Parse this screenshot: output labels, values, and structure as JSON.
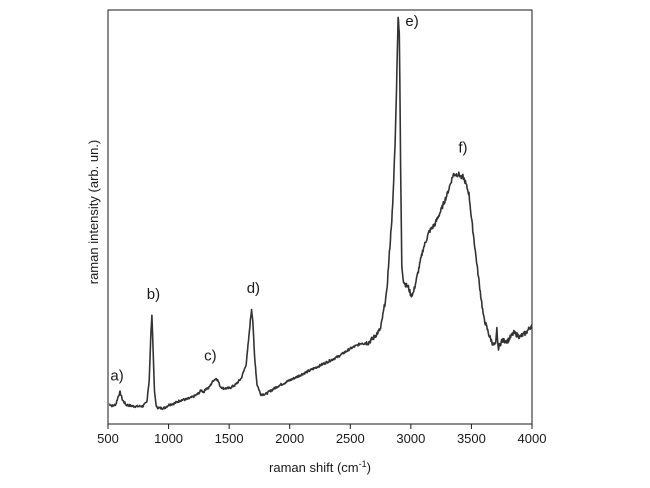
{
  "chart_data": {
    "type": "line",
    "xlabel": "raman shift (cm",
    "xlabel_sup": "-1",
    "xlabel_end": ")",
    "ylabel": "raman intensity (arb. un.)",
    "xlim": [
      500,
      4000
    ],
    "ylim": [
      0,
      1
    ],
    "x_ticks": [
      500,
      1000,
      1500,
      2000,
      2500,
      3000,
      3500,
      4000
    ],
    "y_ticks_shown": false,
    "grid": false,
    "line_color": "#333333",
    "series": [
      {
        "x": [
          510,
          540,
          565,
          585,
          600,
          620,
          650,
          700,
          750,
          790,
          820,
          840,
          852,
          862,
          872,
          884,
          900,
          930,
          960,
          975,
          1000,
          1050,
          1100,
          1150,
          1200,
          1240,
          1270,
          1290,
          1310,
          1330,
          1350,
          1370,
          1395,
          1410,
          1425,
          1450,
          1500,
          1550,
          1600,
          1640,
          1660,
          1675,
          1685,
          1695,
          1710,
          1730,
          1760,
          1800,
          1900,
          2000,
          2100,
          2200,
          2300,
          2400,
          2500,
          2600,
          2650,
          2700,
          2750,
          2800,
          2850,
          2870,
          2885,
          2895,
          2905,
          2915,
          2925,
          2940,
          2960,
          2980,
          3000,
          3020,
          3050,
          3100,
          3150,
          3200,
          3250,
          3300,
          3350,
          3380,
          3400,
          3420,
          3430,
          3450,
          3480,
          3500,
          3550,
          3600,
          3650,
          3680,
          3700,
          3710,
          3720,
          3750,
          3800,
          3850,
          3900,
          3950,
          4000
        ],
        "y": [
          0.02,
          0.015,
          0.02,
          0.04,
          0.05,
          0.03,
          0.018,
          0.015,
          0.014,
          0.015,
          0.025,
          0.08,
          0.18,
          0.245,
          0.16,
          0.05,
          0.012,
          0.01,
          0.01,
          0.012,
          0.018,
          0.022,
          0.03,
          0.032,
          0.038,
          0.045,
          0.055,
          0.05,
          0.06,
          0.06,
          0.07,
          0.08,
          0.085,
          0.078,
          0.065,
          0.06,
          0.06,
          0.068,
          0.085,
          0.12,
          0.18,
          0.23,
          0.26,
          0.23,
          0.14,
          0.07,
          0.045,
          0.045,
          0.065,
          0.08,
          0.095,
          0.11,
          0.125,
          0.14,
          0.16,
          0.175,
          0.175,
          0.19,
          0.21,
          0.3,
          0.52,
          0.68,
          0.86,
          1.0,
          0.96,
          0.62,
          0.37,
          0.33,
          0.32,
          0.315,
          0.295,
          0.3,
          0.34,
          0.41,
          0.455,
          0.475,
          0.51,
          0.55,
          0.6,
          0.6,
          0.6,
          0.59,
          0.595,
          0.58,
          0.55,
          0.49,
          0.36,
          0.24,
          0.19,
          0.17,
          0.17,
          0.21,
          0.16,
          0.18,
          0.18,
          0.2,
          0.19,
          0.2,
          0.22
        ]
      }
    ],
    "annotations": [
      {
        "text": "a)",
        "x": 575,
        "y": 0.08
      },
      {
        "text": "b)",
        "x": 875,
        "y": 0.285
      },
      {
        "text": "c)",
        "x": 1345,
        "y": 0.13
      },
      {
        "text": "d)",
        "x": 1700,
        "y": 0.3
      },
      {
        "text": "e)",
        "x": 3010,
        "y": 0.975
      },
      {
        "text": "f)",
        "x": 3430,
        "y": 0.655
      }
    ]
  }
}
